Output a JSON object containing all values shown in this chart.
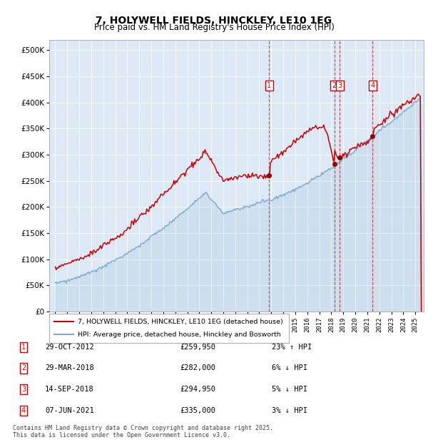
{
  "title": "7, HOLYWELL FIELDS, HINCKLEY, LE10 1EG",
  "subtitle": "Price paid vs. HM Land Registry's House Price Index (HPI)",
  "ytick_values": [
    0,
    50000,
    100000,
    150000,
    200000,
    250000,
    300000,
    350000,
    400000,
    450000,
    500000
  ],
  "ylim": [
    0,
    520000
  ],
  "xlim_start": 1994.5,
  "xlim_end": 2025.7,
  "red_line_color": "#cc0000",
  "blue_line_color": "#7aabcf",
  "dashed_line_color": "#dd4444",
  "legend_label_red": "7, HOLYWELL FIELDS, HINCKLEY, LE10 1EG (detached house)",
  "legend_label_blue": "HPI: Average price, detached house, Hinckley and Bosworth",
  "sales": [
    {
      "num": 1,
      "date": "29-OCT-2012",
      "price": 259950,
      "pct": "23%",
      "dir": "↑",
      "year": 2012.83
    },
    {
      "num": 2,
      "date": "29-MAR-2018",
      "price": 282000,
      "pct": "6%",
      "dir": "↓",
      "year": 2018.25
    },
    {
      "num": 3,
      "date": "14-SEP-2018",
      "price": 294950,
      "pct": "5%",
      "dir": "↓",
      "year": 2018.71
    },
    {
      "num": 4,
      "date": "07-JUN-2021",
      "price": 335000,
      "pct": "3%",
      "dir": "↓",
      "year": 2021.44
    }
  ],
  "footer": "Contains HM Land Registry data © Crown copyright and database right 2025.\nThis data is licensed under the Open Government Licence v3.0.",
  "xticks": [
    1995,
    1996,
    1997,
    1998,
    1999,
    2000,
    2001,
    2002,
    2003,
    2004,
    2005,
    2006,
    2007,
    2008,
    2009,
    2010,
    2011,
    2012,
    2013,
    2014,
    2015,
    2016,
    2017,
    2018,
    2019,
    2020,
    2021,
    2022,
    2023,
    2024,
    2025
  ],
  "marker_y": 432000,
  "fig_width": 6.0,
  "fig_height": 6.2,
  "dpi": 100
}
